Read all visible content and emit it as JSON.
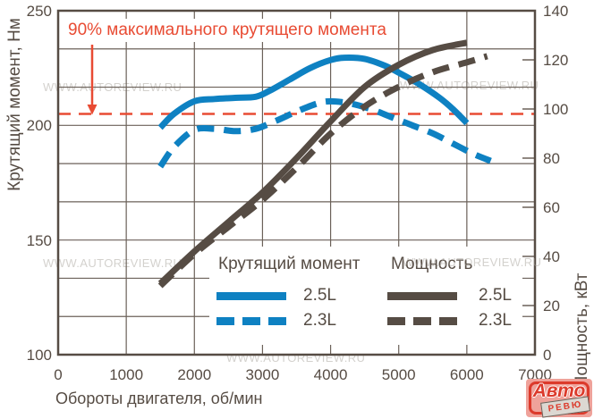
{
  "watermark": "WWW.AUTOREVIEW.RU",
  "logo": {
    "brand_top": "Авто",
    "brand_bottom": "РЕВЮ"
  },
  "chart_data": {
    "type": "line",
    "xlabel": "Обороты двигателя, об/мин",
    "ylabel_left": "Крутящий момент, Нм",
    "ylabel_right": "Мощность, кВт",
    "xlim": [
      0,
      7000
    ],
    "ylim_left": [
      100,
      250
    ],
    "ylim_right": [
      0,
      140
    ],
    "x_ticks": [
      0,
      1000,
      2000,
      3000,
      4000,
      5000,
      6000,
      7000
    ],
    "y_ticks_left": [
      250,
      200,
      150,
      100
    ],
    "y_ticks_right": [
      140,
      120,
      100,
      80,
      60,
      40,
      20,
      0
    ],
    "h_grid_divisions": 9,
    "grid": true,
    "annotation": {
      "text": "90% максимального крутящего момента",
      "arrow_points_to_nm": 205
    },
    "reference_line": {
      "axis": "left",
      "value": 205,
      "style": "dashed",
      "color": "#e84b33"
    },
    "colors": {
      "torque": "#0e81c2",
      "power": "#564c44",
      "reference": "#e84b33",
      "grid": "#6b6159",
      "text": "#564c44"
    },
    "legend": {
      "position": "inside-bottom-right",
      "groups": [
        {
          "header": "Крутящий момент",
          "rows": [
            {
              "label": "2.5L",
              "style": "solid"
            },
            {
              "label": "2.3L",
              "style": "dashed"
            }
          ]
        },
        {
          "header": "Мощность",
          "rows": [
            {
              "label": "2.5L",
              "style": "solid"
            },
            {
              "label": "2.3L",
              "style": "dashed"
            }
          ]
        }
      ]
    },
    "series": [
      {
        "name": "Крутящий момент 2.5L",
        "axis": "left",
        "unit": "Нм",
        "style": "solid",
        "color": "#0e81c2",
        "points": [
          [
            1500,
            199
          ],
          [
            1700,
            205
          ],
          [
            2000,
            210.5
          ],
          [
            2300,
            211.5
          ],
          [
            2600,
            212
          ],
          [
            2900,
            212.5
          ],
          [
            3100,
            215
          ],
          [
            3400,
            220
          ],
          [
            3700,
            225
          ],
          [
            4000,
            228.5
          ],
          [
            4200,
            229.5
          ],
          [
            4500,
            229
          ],
          [
            4800,
            226
          ],
          [
            5000,
            223
          ],
          [
            5300,
            218
          ],
          [
            5600,
            212
          ],
          [
            5800,
            207
          ],
          [
            6000,
            201
          ]
        ]
      },
      {
        "name": "Крутящий момент 2.3L",
        "axis": "left",
        "unit": "Нм",
        "style": "dashed",
        "color": "#0e81c2",
        "points": [
          [
            1500,
            182
          ],
          [
            1700,
            190.5
          ],
          [
            2000,
            198
          ],
          [
            2300,
            198.5
          ],
          [
            2600,
            197.5
          ],
          [
            2900,
            198.5
          ],
          [
            3200,
            202
          ],
          [
            3500,
            206
          ],
          [
            3800,
            209.5
          ],
          [
            4000,
            210.5
          ],
          [
            4300,
            209.5
          ],
          [
            4600,
            207
          ],
          [
            4900,
            203.5
          ],
          [
            5200,
            200
          ],
          [
            5500,
            196.5
          ],
          [
            5800,
            192
          ],
          [
            6100,
            187.5
          ],
          [
            6350,
            184.5
          ]
        ]
      },
      {
        "name": "Мощность 2.5L",
        "axis": "right",
        "unit": "кВт",
        "style": "solid",
        "color": "#564c44",
        "points": [
          [
            1500,
            29
          ],
          [
            2000,
            42
          ],
          [
            2500,
            54
          ],
          [
            3000,
            66
          ],
          [
            3500,
            80
          ],
          [
            4000,
            95
          ],
          [
            4500,
            109
          ],
          [
            5000,
            118
          ],
          [
            5500,
            124
          ],
          [
            6000,
            127
          ]
        ]
      },
      {
        "name": "Мощность 2.3L",
        "axis": "right",
        "unit": "кВт",
        "style": "dashed",
        "color": "#564c44",
        "points": [
          [
            1500,
            28
          ],
          [
            2000,
            41
          ],
          [
            2500,
            52
          ],
          [
            3000,
            63
          ],
          [
            3500,
            76
          ],
          [
            4000,
            90
          ],
          [
            4500,
            101
          ],
          [
            5000,
            109
          ],
          [
            5500,
            115
          ],
          [
            6000,
            119
          ],
          [
            6300,
            121.5
          ]
        ]
      }
    ]
  }
}
